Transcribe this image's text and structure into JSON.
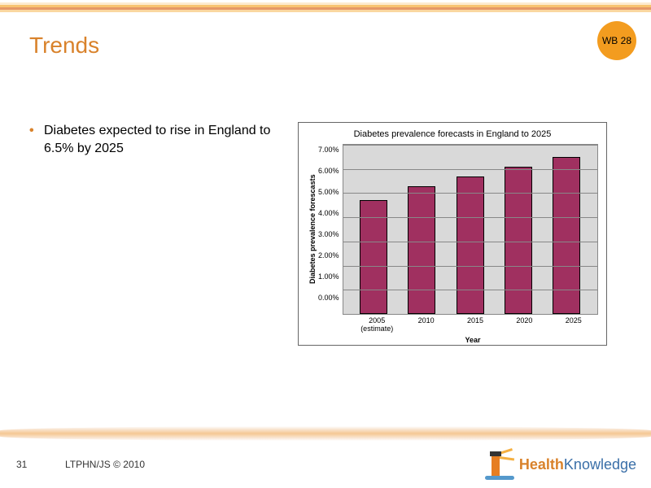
{
  "badge": "WB 28",
  "title": "Trends",
  "bullet": "Diabetes expected to rise in England to 6.5% by 2025",
  "footer": {
    "slide_number": "31",
    "text": "LTPHN/JS © 2010"
  },
  "logo": {
    "part1": "Health",
    "part2": "Knowledge"
  },
  "top_stripe_colors": [
    "#ffffff",
    "#fdebd0",
    "#f8c471",
    "#e59866",
    "#fad7a0",
    "#ffffff"
  ],
  "chart": {
    "type": "bar",
    "title": "Diabetes prevalence forecasts in England to 2025",
    "y_label": "Diabetes prevalence forescasts",
    "x_label": "Year",
    "y_ticks": [
      "7.00%",
      "6.00%",
      "5.00%",
      "4.00%",
      "3.00%",
      "2.00%",
      "1.00%",
      "0.00%"
    ],
    "y_max": 7.0,
    "categories": [
      "2005 (estimate)",
      "2010",
      "2015",
      "2020",
      "2025"
    ],
    "values": [
      4.7,
      5.3,
      5.7,
      6.1,
      6.5
    ],
    "bar_color": "#a03060",
    "bar_border": "#000000",
    "plot_bg": "#d9d9d9",
    "grid_color": "#888888",
    "title_fontsize": 11,
    "tick_fontsize": 9,
    "label_fontsize": 9
  }
}
